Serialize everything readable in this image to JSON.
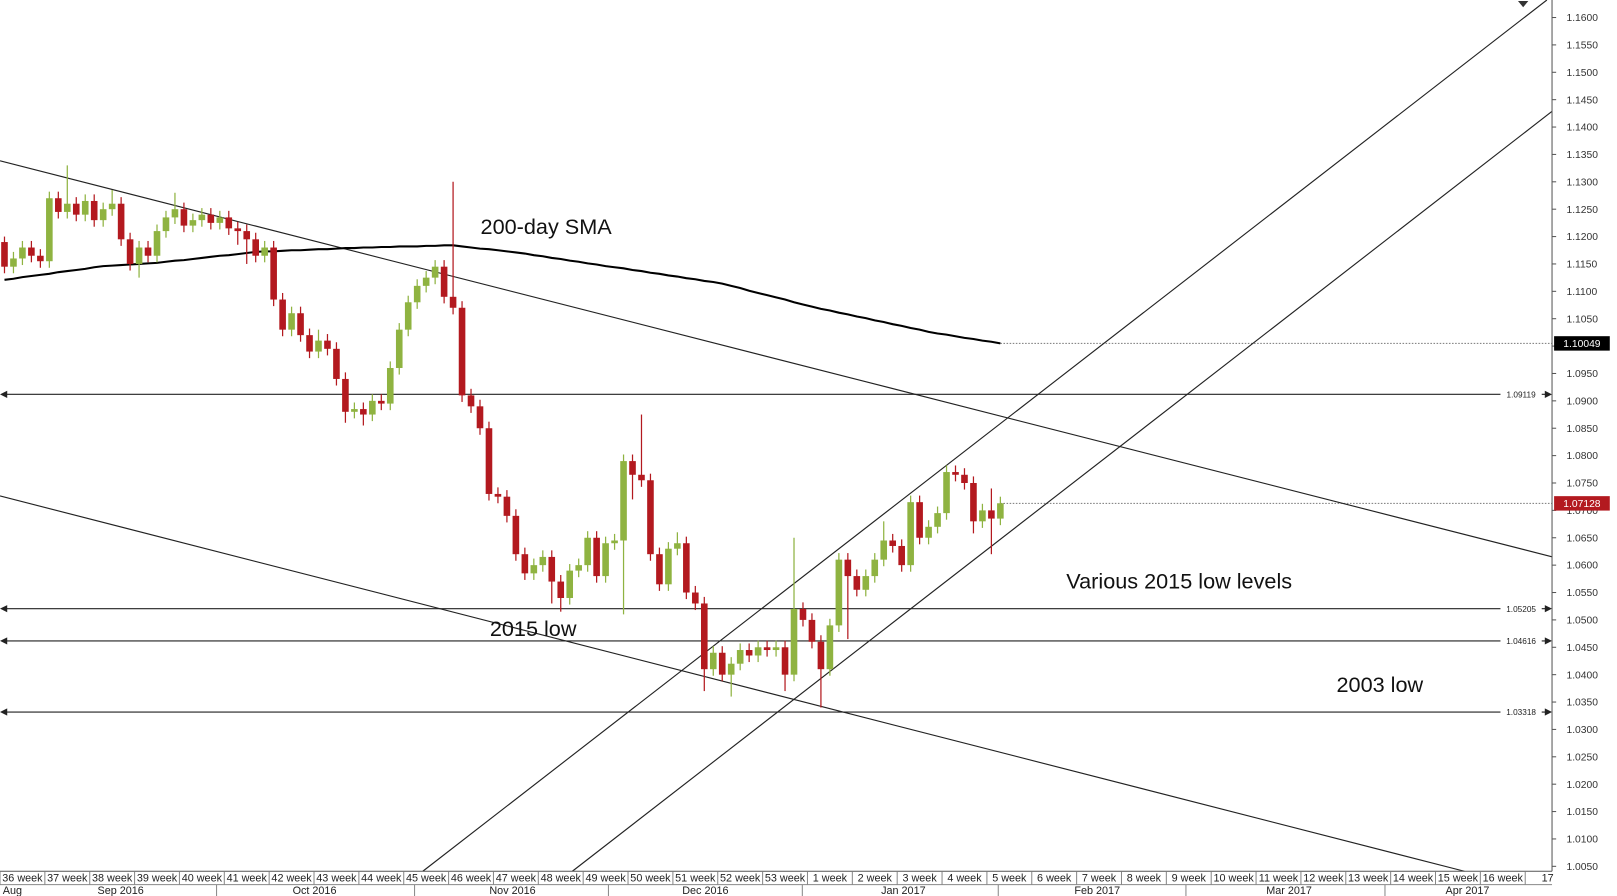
{
  "chart_data": {
    "type": "candlestick",
    "up_color": "#8fb341",
    "down_color": "#b3191f",
    "ylim": [
      1.0041,
      1.1632
    ],
    "yticks": [
      {
        "value": 1.005,
        "label": "1.0050"
      },
      {
        "value": 1.01,
        "label": "1.0100"
      },
      {
        "value": 1.015,
        "label": "1.0150"
      },
      {
        "value": 1.02,
        "label": "1.0200"
      },
      {
        "value": 1.025,
        "label": "1.0250"
      },
      {
        "value": 1.03,
        "label": "1.0300"
      },
      {
        "value": 1.035,
        "label": "1.0350"
      },
      {
        "value": 1.04,
        "label": "1.0400"
      },
      {
        "value": 1.045,
        "label": "1.0450"
      },
      {
        "value": 1.05,
        "label": "1.0500"
      },
      {
        "value": 1.055,
        "label": "1.0550"
      },
      {
        "value": 1.06,
        "label": "1.0600"
      },
      {
        "value": 1.065,
        "label": "1.0650"
      },
      {
        "value": 1.07,
        "label": "1.0700"
      },
      {
        "value": 1.075,
        "label": "1.0750"
      },
      {
        "value": 1.08,
        "label": "1.0800"
      },
      {
        "value": 1.085,
        "label": "1.0850"
      },
      {
        "value": 1.09,
        "label": "1.0900"
      },
      {
        "value": 1.095,
        "label": "1.0950"
      },
      {
        "value": 1.1,
        "label": "1.1000"
      },
      {
        "value": 1.105,
        "label": "1.1050"
      },
      {
        "value": 1.11,
        "label": "1.1100"
      },
      {
        "value": 1.115,
        "label": "1.1150"
      },
      {
        "value": 1.12,
        "label": "1.1200"
      },
      {
        "value": 1.125,
        "label": "1.1250"
      },
      {
        "value": 1.13,
        "label": "1.1300"
      },
      {
        "value": 1.135,
        "label": "1.1350"
      },
      {
        "value": 1.14,
        "label": "1.1400"
      },
      {
        "value": 1.145,
        "label": "1.1450"
      },
      {
        "value": 1.15,
        "label": "1.1500"
      },
      {
        "value": 1.155,
        "label": "1.1550"
      },
      {
        "value": 1.16,
        "label": "1.1600"
      }
    ],
    "weeks": [
      "36 week",
      "37 week",
      "38 week",
      "39 week",
      "40 week",
      "41 week",
      "42 week",
      "43 week",
      "44 week",
      "45 week",
      "46 week",
      "47 week",
      "48 week",
      "49 week",
      "50 week",
      "51 week",
      "52 week",
      "53 week",
      "1 week",
      "2 week",
      "3 week",
      "4 week",
      "5 week",
      "6 week",
      "7 week",
      "8 week",
      "9 week",
      "10 week",
      "11 week",
      "12 week",
      "13 week",
      "14 week",
      "15 week",
      "16 week",
      "17"
    ],
    "months": [
      "Aug",
      "Sep 2016",
      "Oct 2016",
      "Nov 2016",
      "Dec 2016",
      "Jan 2017",
      "Feb 2017",
      "Mar 2017",
      "Apr 2017"
    ],
    "candles": [
      [
        1.119,
        1.12,
        1.1133,
        1.1145
      ],
      [
        1.1145,
        1.1172,
        1.1133,
        1.116
      ],
      [
        1.116,
        1.1192,
        1.1148,
        1.118
      ],
      [
        1.118,
        1.1192,
        1.1153,
        1.1165
      ],
      [
        1.1165,
        1.1177,
        1.1143,
        1.1155
      ],
      [
        1.1155,
        1.1282,
        1.1143,
        1.127
      ],
      [
        1.127,
        1.1282,
        1.1233,
        1.1245
      ],
      [
        1.1245,
        1.133,
        1.1233,
        1.126
      ],
      [
        1.126,
        1.1272,
        1.1228,
        1.124
      ],
      [
        1.124,
        1.1277,
        1.1228,
        1.1265
      ],
      [
        1.1265,
        1.1277,
        1.1218,
        1.123
      ],
      [
        1.123,
        1.1262,
        1.1218,
        1.125
      ],
      [
        1.125,
        1.1285,
        1.1238,
        1.126
      ],
      [
        1.126,
        1.1272,
        1.1183,
        1.1195
      ],
      [
        1.1195,
        1.1207,
        1.1138,
        1.115
      ],
      [
        1.115,
        1.1192,
        1.1125,
        1.118
      ],
      [
        1.118,
        1.1192,
        1.1153,
        1.1165
      ],
      [
        1.1165,
        1.1222,
        1.1153,
        1.121
      ],
      [
        1.121,
        1.1247,
        1.1198,
        1.1235
      ],
      [
        1.1235,
        1.128,
        1.1223,
        1.125
      ],
      [
        1.125,
        1.1262,
        1.1208,
        1.122
      ],
      [
        1.122,
        1.1242,
        1.1208,
        1.123
      ],
      [
        1.123,
        1.1252,
        1.1218,
        1.124
      ],
      [
        1.124,
        1.1252,
        1.1213,
        1.1225
      ],
      [
        1.1225,
        1.1247,
        1.1213,
        1.1235
      ],
      [
        1.1235,
        1.1247,
        1.1203,
        1.1215
      ],
      [
        1.1215,
        1.1227,
        1.1185,
        1.121
      ],
      [
        1.121,
        1.1222,
        1.115,
        1.1195
      ],
      [
        1.1195,
        1.1207,
        1.1153,
        1.1165
      ],
      [
        1.1165,
        1.1192,
        1.1153,
        1.118
      ],
      [
        1.118,
        1.1192,
        1.1073,
        1.1085
      ],
      [
        1.1085,
        1.1097,
        1.1018,
        1.103
      ],
      [
        1.103,
        1.1072,
        1.1018,
        1.106
      ],
      [
        1.106,
        1.1072,
        1.1008,
        1.102
      ],
      [
        1.102,
        1.1032,
        1.0978,
        1.099
      ],
      [
        1.099,
        1.103,
        1.0978,
        1.101
      ],
      [
        1.101,
        1.1022,
        1.0983,
        1.0995
      ],
      [
        1.0995,
        1.1007,
        1.0928,
        1.094
      ],
      [
        1.094,
        1.0952,
        1.086,
        1.088
      ],
      [
        1.088,
        1.0897,
        1.0868,
        1.0885
      ],
      [
        1.0885,
        1.0897,
        1.0855,
        1.0875
      ],
      [
        1.0875,
        1.0912,
        1.0863,
        1.09
      ],
      [
        1.09,
        1.0912,
        1.0883,
        1.0895
      ],
      [
        1.0895,
        1.0972,
        1.0883,
        1.096
      ],
      [
        1.096,
        1.1042,
        1.0948,
        1.103
      ],
      [
        1.103,
        1.1092,
        1.1018,
        1.108
      ],
      [
        1.108,
        1.1122,
        1.1068,
        1.111
      ],
      [
        1.111,
        1.1137,
        1.1098,
        1.1125
      ],
      [
        1.1125,
        1.1157,
        1.1113,
        1.1145
      ],
      [
        1.1145,
        1.1157,
        1.1078,
        1.109
      ],
      [
        1.109,
        1.13,
        1.1058,
        1.107
      ],
      [
        1.107,
        1.1082,
        1.0898,
        1.091
      ],
      [
        1.091,
        1.0922,
        1.0878,
        1.089
      ],
      [
        1.089,
        1.0902,
        1.0838,
        1.085
      ],
      [
        1.085,
        1.0862,
        1.0718,
        1.073
      ],
      [
        1.073,
        1.0742,
        1.0713,
        1.0725
      ],
      [
        1.0725,
        1.0737,
        1.0678,
        1.069
      ],
      [
        1.069,
        1.0702,
        1.0608,
        1.062
      ],
      [
        1.062,
        1.0632,
        1.0573,
        1.0585
      ],
      [
        1.0585,
        1.0612,
        1.0573,
        1.06
      ],
      [
        1.06,
        1.0627,
        1.0588,
        1.0615
      ],
      [
        1.0615,
        1.0627,
        1.053,
        1.057
      ],
      [
        1.057,
        1.0582,
        1.0515,
        1.054
      ],
      [
        1.054,
        1.0602,
        1.0528,
        1.059
      ],
      [
        1.059,
        1.0612,
        1.0578,
        1.06
      ],
      [
        1.06,
        1.0662,
        1.0588,
        1.065
      ],
      [
        1.065,
        1.0662,
        1.0568,
        1.058
      ],
      [
        1.058,
        1.0652,
        1.0568,
        1.064
      ],
      [
        1.064,
        1.0657,
        1.0628,
        1.0645
      ],
      [
        1.0645,
        1.0802,
        1.051,
        1.079
      ],
      [
        1.079,
        1.0802,
        1.072,
        1.0765
      ],
      [
        1.0765,
        1.0875,
        1.0743,
        1.0755
      ],
      [
        1.0755,
        1.0767,
        1.0608,
        1.062
      ],
      [
        1.062,
        1.0632,
        1.0553,
        1.0565
      ],
      [
        1.0565,
        1.0642,
        1.0553,
        1.063
      ],
      [
        1.063,
        1.066,
        1.0618,
        1.064
      ],
      [
        1.064,
        1.0652,
        1.0538,
        1.055
      ],
      [
        1.055,
        1.0562,
        1.0518,
        1.053
      ],
      [
        1.053,
        1.0542,
        1.037,
        1.041
      ],
      [
        1.041,
        1.0452,
        1.0398,
        1.044
      ],
      [
        1.044,
        1.0452,
        1.0388,
        1.04
      ],
      [
        1.04,
        1.0432,
        1.036,
        1.042
      ],
      [
        1.042,
        1.0457,
        1.0408,
        1.0445
      ],
      [
        1.0445,
        1.0457,
        1.0423,
        1.0435
      ],
      [
        1.0435,
        1.0462,
        1.0423,
        1.045
      ],
      [
        1.045,
        1.0462,
        1.0433,
        1.0445
      ],
      [
        1.0445,
        1.0462,
        1.0433,
        1.045
      ],
      [
        1.045,
        1.0462,
        1.037,
        1.04
      ],
      [
        1.04,
        1.065,
        1.0388,
        1.052
      ],
      [
        1.052,
        1.0532,
        1.0488,
        1.05
      ],
      [
        1.05,
        1.0512,
        1.0448,
        1.046
      ],
      [
        1.046,
        1.0472,
        1.034,
        1.041
      ],
      [
        1.041,
        1.0502,
        1.0398,
        1.049
      ],
      [
        1.049,
        1.0622,
        1.0478,
        1.061
      ],
      [
        1.061,
        1.0622,
        1.0465,
        1.058
      ],
      [
        1.058,
        1.0592,
        1.0543,
        1.0555
      ],
      [
        1.0555,
        1.0592,
        1.0543,
        1.058
      ],
      [
        1.058,
        1.0622,
        1.0568,
        1.061
      ],
      [
        1.061,
        1.068,
        1.0598,
        1.0645
      ],
      [
        1.0645,
        1.0657,
        1.0623,
        1.0635
      ],
      [
        1.0635,
        1.0647,
        1.0588,
        1.06
      ],
      [
        1.06,
        1.0727,
        1.0588,
        1.0715
      ],
      [
        1.0715,
        1.0727,
        1.0638,
        1.065
      ],
      [
        1.065,
        1.0682,
        1.0638,
        1.067
      ],
      [
        1.067,
        1.0707,
        1.0658,
        1.0695
      ],
      [
        1.0695,
        1.0782,
        1.0683,
        1.077
      ],
      [
        1.077,
        1.0782,
        1.0753,
        1.0765
      ],
      [
        1.0765,
        1.0777,
        1.0738,
        1.075
      ],
      [
        1.075,
        1.0762,
        1.0658,
        1.068
      ],
      [
        1.068,
        1.0712,
        1.0668,
        1.07
      ],
      [
        1.07,
        1.074,
        1.062,
        1.0685
      ],
      [
        1.0685,
        1.0725,
        1.0673,
        1.0713
      ]
    ],
    "sma": {
      "name": "200-day SMA",
      "color": "#000000",
      "values": [
        1.1121,
        1.1123,
        1.1126,
        1.1128,
        1.113,
        1.1132,
        1.1135,
        1.1137,
        1.1139,
        1.1141,
        1.1144,
        1.1146,
        1.1147,
        1.1148,
        1.1149,
        1.115,
        1.1151,
        1.1152,
        1.1154,
        1.1156,
        1.1157,
        1.1159,
        1.1161,
        1.1163,
        1.1165,
        1.1166,
        1.1168,
        1.117,
        1.1172,
        1.1173,
        1.1173,
        1.1174,
        1.1175,
        1.1175,
        1.1176,
        1.1177,
        1.1177,
        1.1178,
        1.1179,
        1.1179,
        1.118,
        1.118,
        1.1181,
        1.1181,
        1.1182,
        1.1182,
        1.1182,
        1.1183,
        1.1183,
        1.1184,
        1.1184,
        1.1182,
        1.118,
        1.1178,
        1.1177,
        1.1175,
        1.1173,
        1.1171,
        1.1169,
        1.1166,
        1.1164,
        1.1161,
        1.1159,
        1.1156,
        1.1154,
        1.1151,
        1.1149,
        1.1146,
        1.1144,
        1.1142,
        1.1139,
        1.1137,
        1.1134,
        1.1132,
        1.1129,
        1.1127,
        1.1124,
        1.1122,
        1.1119,
        1.1117,
        1.1114,
        1.111,
        1.1106,
        1.1101,
        1.1097,
        1.1093,
        1.1089,
        1.1085,
        1.108,
        1.1076,
        1.1072,
        1.1068,
        1.1065,
        1.1061,
        1.1058,
        1.1054,
        1.1051,
        1.1047,
        1.1044,
        1.104,
        1.1037,
        1.1033,
        1.103,
        1.1026,
        1.1023,
        1.1021,
        1.1018,
        1.1015,
        1.1013,
        1.101,
        1.1008,
        1.1005
      ]
    },
    "levels": [
      1.09119,
      1.05205,
      1.04616,
      1.03318
    ],
    "price_markers": [
      {
        "value": 1.10049,
        "color": "#000000"
      },
      {
        "value": 1.07128,
        "color": "#b3191f"
      }
    ],
    "annotations": [
      "Various 2015 low levels",
      "2015 low",
      "2003 low"
    ]
  }
}
